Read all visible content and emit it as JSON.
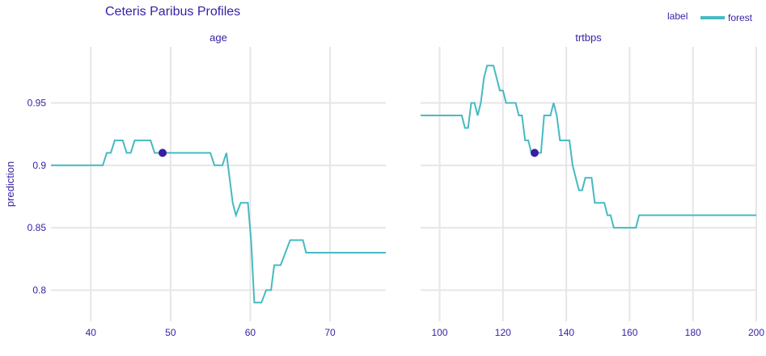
{
  "chart_data": {
    "type": "line",
    "title": "Ceteris Paribus Profiles",
    "ylabel": "prediction",
    "legend": {
      "title": "label",
      "placement": "top-right",
      "entries": [
        {
          "name": "forest",
          "color": "#46bac2"
        }
      ]
    },
    "ylim": [
      0.775,
      0.995
    ],
    "yticks": [
      0.8,
      0.85,
      0.9,
      0.95
    ],
    "ytick_labels": [
      "0.8",
      "0.85",
      "0.9",
      "0.95"
    ],
    "point_color": "#371ea3",
    "panels": [
      {
        "name": "age",
        "xlim": [
          35,
          77
        ],
        "xticks": [
          40,
          50,
          60,
          70
        ],
        "xtick_labels": [
          "40",
          "50",
          "60",
          "70"
        ],
        "series": [
          {
            "name": "forest",
            "color": "#46bac2",
            "x": [
              35,
              41.5,
              42,
              42.5,
              43,
              44,
              44.5,
              45,
              45.5,
              47.5,
              48,
              49,
              50,
              55,
              55.5,
              56.5,
              57,
              57.8,
              58.2,
              58.8,
              59.7,
              60.1,
              60.5,
              61.4,
              62,
              62.6,
              63,
              63.8,
              64.4,
              65,
              66.6,
              67,
              77
            ],
            "y": [
              0.9,
              0.9,
              0.91,
              0.91,
              0.92,
              0.92,
              0.91,
              0.91,
              0.92,
              0.92,
              0.91,
              0.91,
              0.91,
              0.91,
              0.9,
              0.9,
              0.91,
              0.87,
              0.86,
              0.87,
              0.87,
              0.84,
              0.79,
              0.79,
              0.8,
              0.8,
              0.82,
              0.82,
              0.83,
              0.84,
              0.84,
              0.83,
              0.83
            ]
          }
        ],
        "point": {
          "x": 49,
          "y": 0.91
        }
      },
      {
        "name": "trtbps",
        "xlim": [
          94,
          200
        ],
        "xticks": [
          100,
          120,
          140,
          160,
          180,
          200
        ],
        "xtick_labels": [
          "100",
          "120",
          "140",
          "160",
          "180",
          "200"
        ],
        "series": [
          {
            "name": "forest",
            "color": "#46bac2",
            "x": [
              94,
              107,
              108,
              109,
              110,
              111,
              112,
              113,
              114,
              115,
              116,
              117,
              118,
              119,
              120,
              121,
              122,
              123,
              124,
              125,
              126,
              127,
              128,
              129,
              130,
              131,
              132,
              133,
              134,
              135,
              136,
              137,
              138,
              139,
              140,
              141,
              142,
              143,
              144,
              145,
              146,
              147,
              148,
              149,
              150,
              151,
              152,
              153,
              154,
              155,
              156,
              157,
              158,
              159,
              160,
              161,
              162,
              163,
              164,
              165,
              166,
              200
            ],
            "y": [
              0.94,
              0.94,
              0.93,
              0.93,
              0.95,
              0.95,
              0.94,
              0.95,
              0.97,
              0.98,
              0.98,
              0.98,
              0.97,
              0.96,
              0.96,
              0.95,
              0.95,
              0.95,
              0.95,
              0.94,
              0.94,
              0.92,
              0.92,
              0.91,
              0.91,
              0.91,
              0.91,
              0.94,
              0.94,
              0.94,
              0.95,
              0.94,
              0.92,
              0.92,
              0.92,
              0.92,
              0.9,
              0.89,
              0.88,
              0.88,
              0.89,
              0.89,
              0.89,
              0.87,
              0.87,
              0.87,
              0.87,
              0.86,
              0.86,
              0.85,
              0.85,
              0.85,
              0.85,
              0.85,
              0.85,
              0.85,
              0.85,
              0.86,
              0.86,
              0.86,
              0.86,
              0.86
            ]
          }
        ],
        "point": {
          "x": 130,
          "y": 0.91
        }
      }
    ]
  }
}
